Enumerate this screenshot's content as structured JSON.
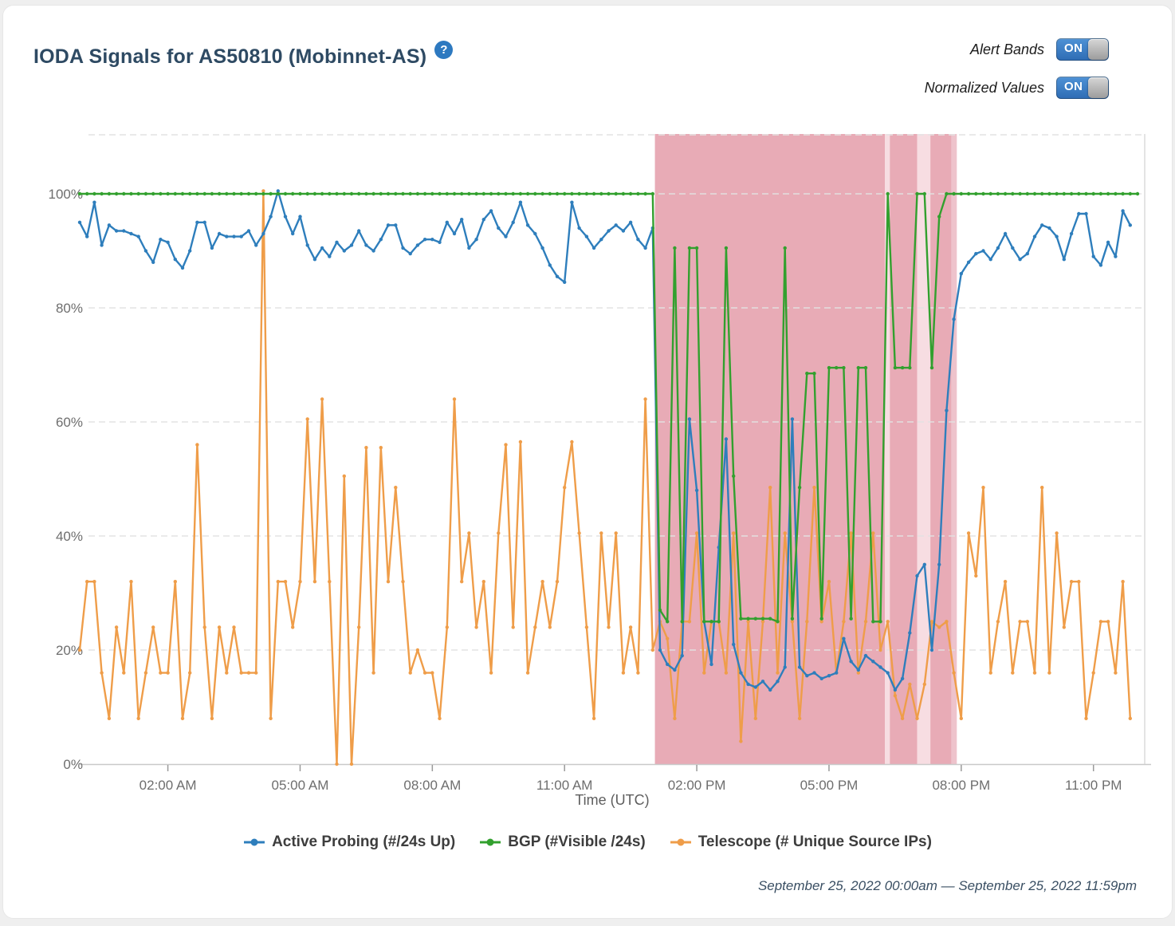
{
  "page": {
    "title": "IODA Signals for AS50810 (Mobinnet-AS)",
    "help_glyph": "?"
  },
  "controls": {
    "alert_bands_label": "Alert Bands",
    "normalized_label": "Normalized Values",
    "alert_bands_state": "ON",
    "normalized_state": "ON"
  },
  "footer": {
    "date_range": "September 25, 2022 00:00am — September 25, 2022 11:59pm"
  },
  "chart_data": {
    "type": "line",
    "title": "IODA Signals for AS50810 (Mobinnet-AS)",
    "xlabel": "Time (UTC)",
    "ylabel": "",
    "x_range_hours": [
      0,
      24
    ],
    "y_range_percent": [
      0,
      110
    ],
    "grid": "dashed-horizontal",
    "legend_position": "bottom",
    "sample_step_hours": 0.166667,
    "y_ticks": [
      {
        "value": 0,
        "label": "0%"
      },
      {
        "value": 20,
        "label": "20%"
      },
      {
        "value": 40,
        "label": "40%"
      },
      {
        "value": 60,
        "label": "60%"
      },
      {
        "value": 80,
        "label": "80%"
      },
      {
        "value": 100,
        "label": "100%"
      }
    ],
    "x_ticks": [
      {
        "hour": 2,
        "label": "02:00 AM"
      },
      {
        "hour": 5,
        "label": "05:00 AM"
      },
      {
        "hour": 8,
        "label": "08:00 AM"
      },
      {
        "hour": 11,
        "label": "11:00 AM"
      },
      {
        "hour": 14,
        "label": "02:00 PM"
      },
      {
        "hour": 17,
        "label": "05:00 PM"
      },
      {
        "hour": 20,
        "label": "08:00 PM"
      },
      {
        "hour": 23,
        "label": "11:00 PM"
      }
    ],
    "band_colors": {
      "dark": "#e8abb6",
      "medium": "#eec3cc",
      "light": "#f7dde2"
    },
    "alert_bands": [
      {
        "start_hour": 13.05,
        "end_hour": 18.27,
        "shade": "dark"
      },
      {
        "start_hour": 18.27,
        "end_hour": 18.38,
        "shade": "light"
      },
      {
        "start_hour": 18.38,
        "end_hour": 19.0,
        "shade": "dark"
      },
      {
        "start_hour": 19.0,
        "end_hour": 19.3,
        "shade": "light"
      },
      {
        "start_hour": 19.3,
        "end_hour": 19.78,
        "shade": "dark"
      },
      {
        "start_hour": 19.78,
        "end_hour": 19.9,
        "shade": "medium"
      }
    ],
    "series": [
      {
        "name": "Active Probing (#/24s Up)",
        "color": "#2e7ebc",
        "values": [
          95,
          92.5,
          98.5,
          91,
          94.5,
          93.5,
          93.5,
          93,
          92.5,
          90,
          88,
          92,
          91.5,
          88.5,
          87,
          90,
          95,
          95,
          90.5,
          93,
          92.5,
          92.5,
          92.5,
          93.5,
          91,
          93,
          96,
          100.5,
          96,
          93,
          96,
          91,
          88.5,
          90.5,
          89,
          91.5,
          90,
          91,
          93.5,
          91,
          90,
          92,
          94.5,
          94.5,
          90.5,
          89.5,
          91,
          92,
          92,
          91.5,
          95,
          93,
          95.5,
          90.5,
          92,
          95.5,
          97,
          94,
          92.5,
          95,
          98.5,
          94.5,
          93,
          90.5,
          87.5,
          85.5,
          84.5,
          98.5,
          94,
          92.5,
          90.5,
          92,
          93.5,
          94.5,
          93.5,
          95,
          92,
          90.5,
          94,
          20,
          17.5,
          16.5,
          19,
          60.5,
          48,
          25,
          17.5,
          38,
          57,
          21,
          16,
          14,
          13.5,
          14.5,
          13,
          14.5,
          17,
          60.5,
          17,
          15.5,
          16,
          15,
          15.5,
          16,
          22,
          18,
          16.5,
          19,
          18,
          17,
          16,
          13,
          15,
          23,
          33,
          35,
          20,
          35,
          62,
          78,
          86,
          88,
          89.5,
          90,
          88.5,
          90.5,
          93,
          90.5,
          88.5,
          89.5,
          92.5,
          94.5,
          94,
          92.5,
          88.5,
          93,
          96.5,
          96.5,
          89,
          87.5,
          91.5,
          89,
          97,
          94.5
        ]
      },
      {
        "name": "BGP (#Visible /24s)",
        "color": "#32a02e",
        "values": [
          100,
          100,
          100,
          100,
          100,
          100,
          100,
          100,
          100,
          100,
          100,
          100,
          100,
          100,
          100,
          100,
          100,
          100,
          100,
          100,
          100,
          100,
          100,
          100,
          100,
          100,
          100,
          100,
          100,
          100,
          100,
          100,
          100,
          100,
          100,
          100,
          100,
          100,
          100,
          100,
          100,
          100,
          100,
          100,
          100,
          100,
          100,
          100,
          100,
          100,
          100,
          100,
          100,
          100,
          100,
          100,
          100,
          100,
          100,
          100,
          100,
          100,
          100,
          100,
          100,
          100,
          100,
          100,
          100,
          100,
          100,
          100,
          100,
          100,
          100,
          100,
          100,
          100,
          100,
          27,
          25,
          90.5,
          25,
          90.5,
          90.5,
          25,
          25,
          25,
          90.5,
          50.5,
          25.5,
          25.5,
          25.5,
          25.5,
          25.5,
          25,
          90.5,
          25.5,
          48.5,
          68.5,
          68.5,
          25.5,
          69.5,
          69.5,
          69.5,
          25.5,
          69.5,
          69.5,
          25,
          25,
          100,
          69.5,
          69.5,
          69.5,
          100,
          100,
          69.5,
          96,
          100,
          100,
          100,
          100,
          100,
          100,
          100,
          100,
          100,
          100,
          100,
          100,
          100,
          100,
          100,
          100,
          100,
          100,
          100,
          100,
          100,
          100,
          100,
          100,
          100,
          100,
          100
        ]
      },
      {
        "name": "Telescope (# Unique Source IPs)",
        "color": "#ef9d49",
        "values": [
          20,
          32,
          32,
          16,
          8,
          24,
          16,
          32,
          8,
          16,
          24,
          16,
          16,
          32,
          8,
          16,
          56,
          24,
          8,
          24,
          16,
          24,
          16,
          16,
          16,
          100.5,
          8,
          32,
          32,
          24,
          32,
          60.5,
          32,
          64,
          32,
          0,
          50.5,
          0,
          24,
          55.5,
          16,
          55.5,
          32,
          48.5,
          32,
          16,
          20,
          16,
          16,
          8,
          24,
          64,
          32,
          40.5,
          24,
          32,
          16,
          40.5,
          56,
          24,
          56.5,
          16,
          24,
          32,
          24,
          32,
          48.5,
          56.5,
          40.5,
          24,
          8,
          40.5,
          24,
          40.5,
          16,
          24,
          16,
          64,
          20,
          25,
          22,
          8,
          25,
          25,
          40.5,
          16,
          25,
          25,
          16,
          40.5,
          4,
          25,
          8,
          25,
          48.5,
          16,
          40.5,
          25,
          8,
          25,
          48.5,
          25,
          32,
          16,
          25,
          40.5,
          16,
          25,
          40.5,
          20,
          25,
          12,
          8,
          14,
          8,
          14,
          25,
          24,
          25,
          16,
          8,
          40.5,
          33,
          48.5,
          16,
          25,
          32,
          16,
          25,
          25,
          16,
          48.5,
          16,
          40.5,
          24,
          32,
          32,
          8,
          16,
          25,
          25,
          16,
          32,
          8
        ]
      }
    ]
  }
}
